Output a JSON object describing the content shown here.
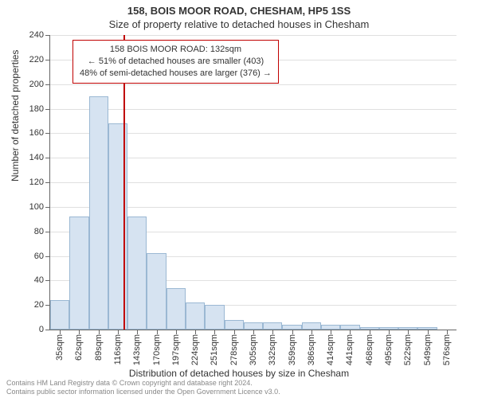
{
  "title_line1": "158, BOIS MOOR ROAD, CHESHAM, HP5 1SS",
  "title_line2": "Size of property relative to detached houses in Chesham",
  "y_axis_title": "Number of detached properties",
  "x_axis_title": "Distribution of detached houses by size in Chesham",
  "chart": {
    "type": "histogram",
    "ylim": [
      0,
      240
    ],
    "ytick_step": 20,
    "y_ticks": [
      0,
      20,
      40,
      60,
      80,
      100,
      120,
      140,
      160,
      180,
      200,
      220,
      240
    ],
    "x_categories": [
      "35sqm",
      "62sqm",
      "89sqm",
      "116sqm",
      "143sqm",
      "170sqm",
      "197sqm",
      "224sqm",
      "251sqm",
      "278sqm",
      "305sqm",
      "332sqm",
      "359sqm",
      "386sqm",
      "414sqm",
      "441sqm",
      "468sqm",
      "495sqm",
      "522sqm",
      "549sqm",
      "576sqm"
    ],
    "values": [
      24,
      92,
      190,
      168,
      92,
      62,
      34,
      22,
      20,
      8,
      6,
      6,
      4,
      6,
      4,
      4,
      2,
      2,
      2,
      2,
      0
    ],
    "bar_fill": "#d6e3f1",
    "bar_border": "#9bb8d3",
    "background_color": "#ffffff",
    "grid_color": "#e0e0e0",
    "axis_color": "#666666",
    "marker": {
      "color": "#c00000",
      "fraction": 0.18
    },
    "label_fontsize": 11,
    "title_fontsize": 13
  },
  "info_box": {
    "line1": "158 BOIS MOOR ROAD: 132sqm",
    "line2": "← 51% of detached houses are smaller (403)",
    "line3": "48% of semi-detached houses are larger (376) →"
  },
  "footer": {
    "line1": "Contains HM Land Registry data © Crown copyright and database right 2024.",
    "line2": "Contains public sector information licensed under the Open Government Licence v3.0."
  }
}
